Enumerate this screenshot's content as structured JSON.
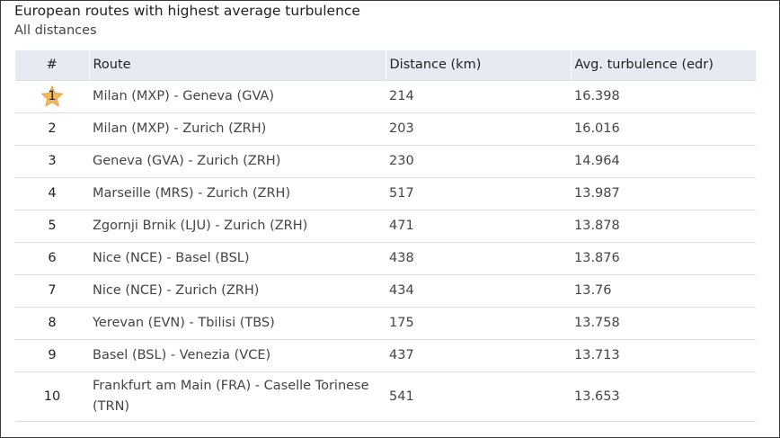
{
  "header": {
    "title": "European routes with highest average turbulence",
    "subtitle": "All distances"
  },
  "table": {
    "columns": [
      "#",
      "Route",
      "Distance (km)",
      "Avg. turbulence (edr)"
    ],
    "rows": [
      {
        "rank": "1",
        "route": "Milan (MXP) - Geneva (GVA)",
        "distance": "214",
        "turbulence": "16.398"
      },
      {
        "rank": "2",
        "route": "Milan (MXP) - Zurich (ZRH)",
        "distance": "203",
        "turbulence": "16.016"
      },
      {
        "rank": "3",
        "route": "Geneva (GVA) - Zurich (ZRH)",
        "distance": "230",
        "turbulence": "14.964"
      },
      {
        "rank": "4",
        "route": "Marseille (MRS) - Zurich (ZRH)",
        "distance": "517",
        "turbulence": "13.987"
      },
      {
        "rank": "5",
        "route": "Zgornji Brnik (LJU) - Zurich (ZRH)",
        "distance": "471",
        "turbulence": "13.878"
      },
      {
        "rank": "6",
        "route": "Nice (NCE) - Basel (BSL)",
        "distance": "438",
        "turbulence": "13.876"
      },
      {
        "rank": "7",
        "route": "Nice (NCE) - Zurich (ZRH)",
        "distance": "434",
        "turbulence": "13.76"
      },
      {
        "rank": "8",
        "route": "Yerevan (EVN) - Tbilisi (TBS)",
        "distance": "175",
        "turbulence": "13.758"
      },
      {
        "rank": "9",
        "route": "Basel (BSL) - Venezia (VCE)",
        "distance": "437",
        "turbulence": "13.713"
      },
      {
        "rank": "10",
        "route": "Frankfurt am Main (FRA) - Caselle Torinese (TRN)",
        "distance": "541",
        "turbulence": "13.653"
      }
    ]
  },
  "icons": {
    "top_rank": "star-icon"
  },
  "colors": {
    "star_fill": "#f5b85a",
    "star_stroke": "#e0a040",
    "header_bg": "#e6ebf3"
  }
}
